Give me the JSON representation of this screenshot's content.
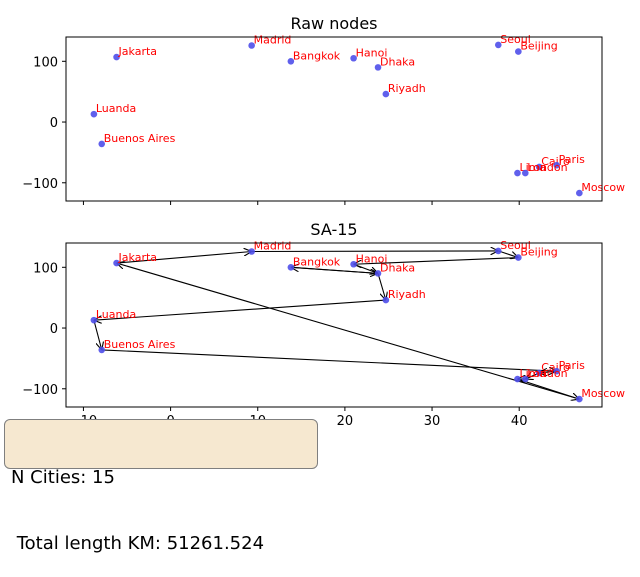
{
  "chart_data": [
    {
      "type": "scatter",
      "title": "Raw nodes",
      "xlabel": "",
      "ylabel": "",
      "xlim": [
        -12,
        49.5
      ],
      "ylim": [
        -130,
        140
      ],
      "xticks": [
        -10,
        0,
        10,
        20,
        30,
        40
      ],
      "yticks": [
        -100,
        0,
        100
      ],
      "show_xtick_labels": false,
      "marker_color": "#4f4fea",
      "label_color": "#ff0000",
      "points": [
        {
          "name": "Madrid",
          "x": 9.3,
          "y": 126
        },
        {
          "name": "Jakarta",
          "x": -6.2,
          "y": 107
        },
        {
          "name": "Bangkok",
          "x": 13.8,
          "y": 100
        },
        {
          "name": "Hanoi",
          "x": 21.0,
          "y": 105
        },
        {
          "name": "Dhaka",
          "x": 23.8,
          "y": 90
        },
        {
          "name": "Seoul",
          "x": 37.6,
          "y": 127
        },
        {
          "name": "Beijing",
          "x": 39.9,
          "y": 116
        },
        {
          "name": "Riyadh",
          "x": 24.7,
          "y": 46
        },
        {
          "name": "Luanda",
          "x": -8.8,
          "y": 13
        },
        {
          "name": "Buenos Aires",
          "x": -7.9,
          "y": -36
        },
        {
          "name": "Cairo",
          "x": 42.3,
          "y": -74
        },
        {
          "name": "Paris",
          "x": 44.3,
          "y": -71
        },
        {
          "name": "Lima",
          "x": 39.8,
          "y": -84
        },
        {
          "name": "London",
          "x": 40.7,
          "y": -84
        },
        {
          "name": "Moscow",
          "x": 46.9,
          "y": -117
        }
      ]
    },
    {
      "type": "line",
      "title": "SA-15",
      "xlabel": "",
      "ylabel": "",
      "xlim": [
        -12,
        49.5
      ],
      "ylim": [
        -130,
        140
      ],
      "xticks": [
        -10,
        0,
        10,
        20,
        30,
        40
      ],
      "yticks": [
        -100,
        0,
        100
      ],
      "show_xtick_labels": true,
      "marker_color": "#4f4fea",
      "label_color": "#ff0000",
      "points": [
        {
          "name": "Madrid",
          "x": 9.3,
          "y": 126
        },
        {
          "name": "Jakarta",
          "x": -6.2,
          "y": 107
        },
        {
          "name": "Bangkok",
          "x": 13.8,
          "y": 100
        },
        {
          "name": "Hanoi",
          "x": 21.0,
          "y": 105
        },
        {
          "name": "Dhaka",
          "x": 23.8,
          "y": 90
        },
        {
          "name": "Seoul",
          "x": 37.6,
          "y": 127
        },
        {
          "name": "Beijing",
          "x": 39.9,
          "y": 116
        },
        {
          "name": "Riyadh",
          "x": 24.7,
          "y": 46
        },
        {
          "name": "Luanda",
          "x": -8.8,
          "y": 13
        },
        {
          "name": "Buenos Aires",
          "x": -7.9,
          "y": -36
        },
        {
          "name": "Cairo",
          "x": 42.3,
          "y": -74
        },
        {
          "name": "Paris",
          "x": 44.3,
          "y": -71
        },
        {
          "name": "Lima",
          "x": 39.8,
          "y": -84
        },
        {
          "name": "London",
          "x": 40.7,
          "y": -84
        },
        {
          "name": "Moscow",
          "x": 46.9,
          "y": -117
        }
      ],
      "route": [
        "Jakarta",
        "Madrid",
        "Seoul",
        "Beijing",
        "Hanoi",
        "Dhaka",
        "Bangkok",
        "Dhaka",
        "Riyadh",
        "Luanda",
        "Buenos Aires",
        "Paris",
        "Cairo",
        "London",
        "Lima",
        "Moscow",
        "Jakarta"
      ]
    }
  ],
  "info": {
    "n_cities": "N Cities: 15",
    "total_length": " Total length KM: 51261.524",
    "box_color": "#f6e8d0"
  }
}
